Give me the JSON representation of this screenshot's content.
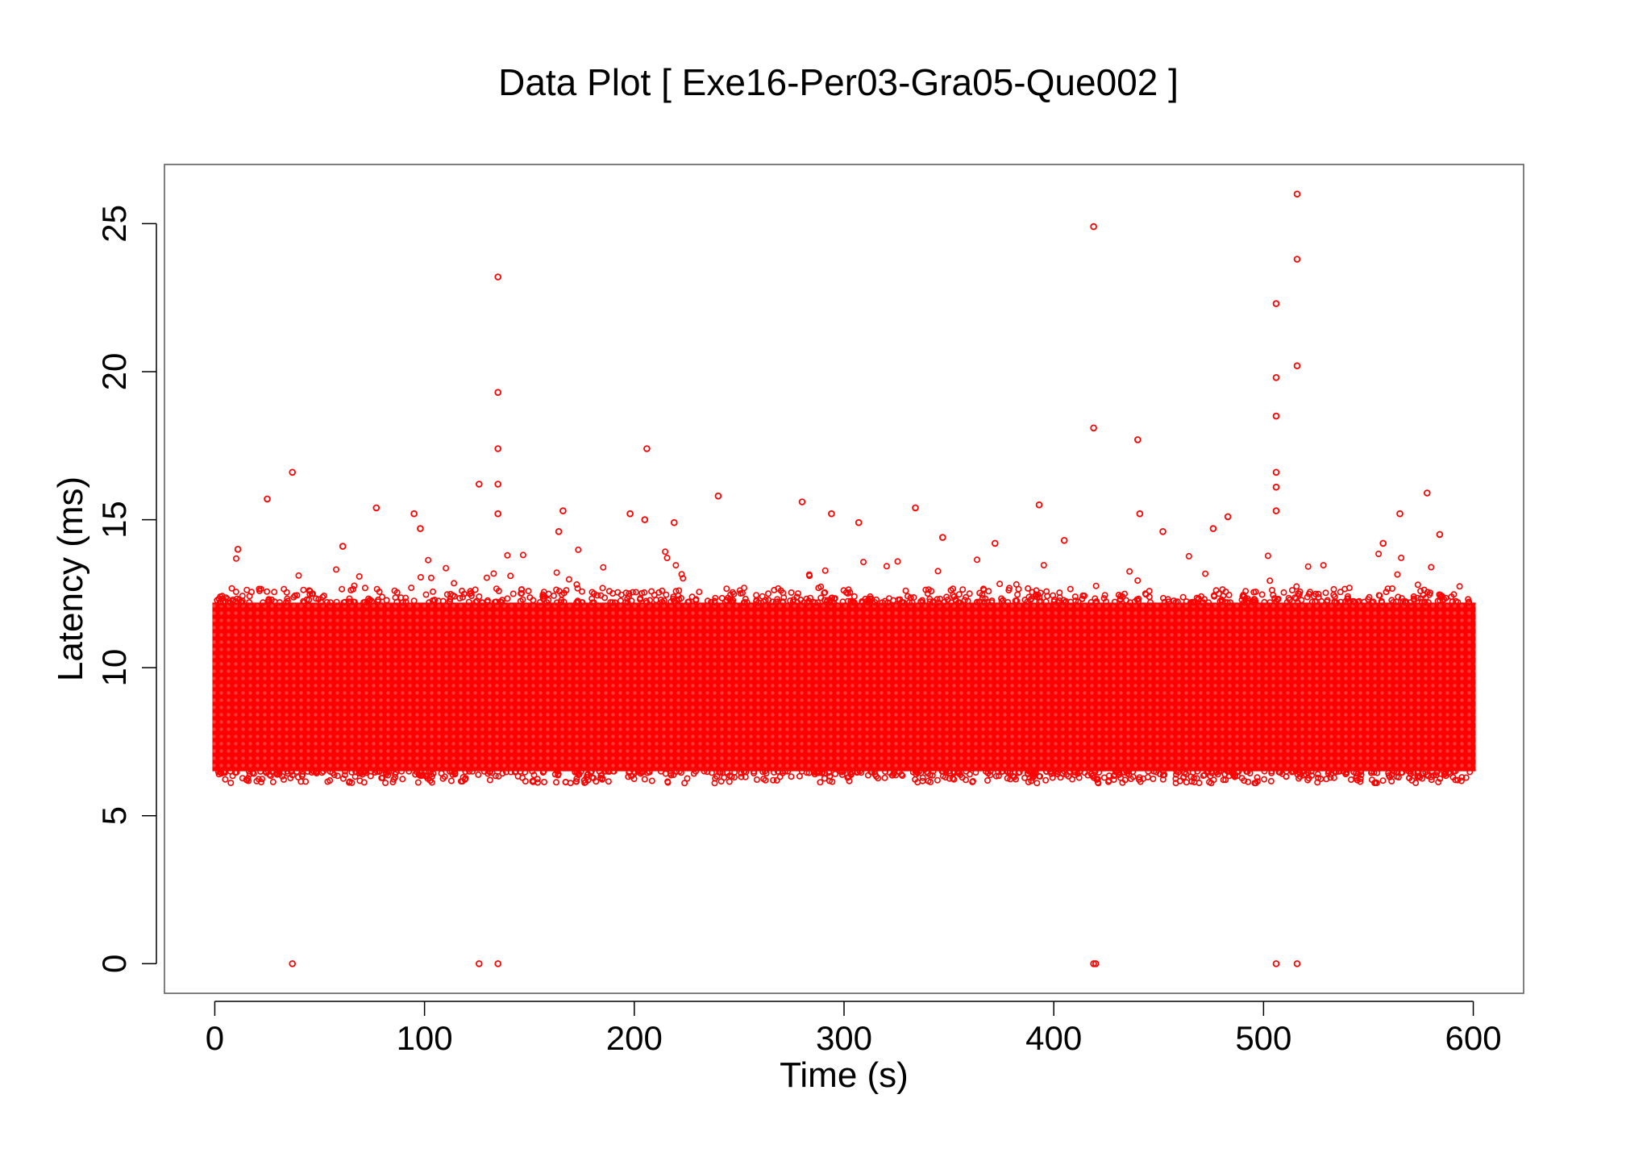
{
  "chart_data": {
    "type": "scatter",
    "title": "Data Plot [ Exe16-Per03-Gra05-Que002 ]",
    "xlabel": "Time (s)",
    "ylabel": "Latency (ms)",
    "xlim": [
      -24,
      624
    ],
    "ylim": [
      -1,
      27
    ],
    "x_ticks": [
      0,
      100,
      200,
      300,
      400,
      500,
      600
    ],
    "x_tick_labels": [
      "0",
      "100",
      "200",
      "300",
      "400",
      "500",
      "600"
    ],
    "y_ticks": [
      0,
      5,
      10,
      15,
      20,
      25
    ],
    "y_tick_labels": [
      "0",
      "5",
      "10",
      "15",
      "20",
      "25"
    ],
    "grid": false,
    "legend": "none",
    "marker": "open-circle",
    "color": "#ff0000",
    "dense_band": {
      "x_range": [
        0,
        600
      ],
      "y_core_range": [
        6.5,
        12.2
      ],
      "description_values": "continuous dense cloud of points between ~6.3 and ~12.3 ms across the whole 0-600 s run"
    },
    "series": [
      {
        "values": [
          {
            "x": 37,
            "y": 0
          },
          {
            "x": 126,
            "y": 0
          },
          {
            "x": 135,
            "y": 0
          },
          {
            "x": 419,
            "y": 0
          },
          {
            "x": 420,
            "y": 0
          },
          {
            "x": 506,
            "y": 0
          },
          {
            "x": 516,
            "y": 0
          },
          {
            "x": 135,
            "y": 23.2
          },
          {
            "x": 135,
            "y": 19.3
          },
          {
            "x": 135,
            "y": 17.4
          },
          {
            "x": 135,
            "y": 16.2
          },
          {
            "x": 135,
            "y": 15.2
          },
          {
            "x": 126,
            "y": 16.2
          },
          {
            "x": 37,
            "y": 16.6
          },
          {
            "x": 25,
            "y": 15.7
          },
          {
            "x": 77,
            "y": 15.4
          },
          {
            "x": 95,
            "y": 15.2
          },
          {
            "x": 98,
            "y": 14.7
          },
          {
            "x": 166,
            "y": 15.3
          },
          {
            "x": 164,
            "y": 14.6
          },
          {
            "x": 198,
            "y": 15.2
          },
          {
            "x": 206,
            "y": 17.4
          },
          {
            "x": 205,
            "y": 15.0
          },
          {
            "x": 219,
            "y": 14.9
          },
          {
            "x": 240,
            "y": 15.8
          },
          {
            "x": 280,
            "y": 15.6
          },
          {
            "x": 294,
            "y": 15.2
          },
          {
            "x": 307,
            "y": 14.9
          },
          {
            "x": 334,
            "y": 15.4
          },
          {
            "x": 347,
            "y": 14.4
          },
          {
            "x": 372,
            "y": 14.2
          },
          {
            "x": 393,
            "y": 15.5
          },
          {
            "x": 405,
            "y": 14.3
          },
          {
            "x": 419,
            "y": 24.9
          },
          {
            "x": 419,
            "y": 18.1
          },
          {
            "x": 440,
            "y": 17.7
          },
          {
            "x": 441,
            "y": 15.2
          },
          {
            "x": 452,
            "y": 14.6
          },
          {
            "x": 476,
            "y": 14.7
          },
          {
            "x": 483,
            "y": 15.1
          },
          {
            "x": 506,
            "y": 22.3
          },
          {
            "x": 506,
            "y": 19.8
          },
          {
            "x": 506,
            "y": 18.5
          },
          {
            "x": 506,
            "y": 16.6
          },
          {
            "x": 506,
            "y": 16.1
          },
          {
            "x": 506,
            "y": 15.3
          },
          {
            "x": 516,
            "y": 26.0
          },
          {
            "x": 516,
            "y": 23.8
          },
          {
            "x": 516,
            "y": 20.2
          },
          {
            "x": 565,
            "y": 15.2
          },
          {
            "x": 578,
            "y": 15.9
          },
          {
            "x": 584,
            "y": 14.5
          },
          {
            "x": 557,
            "y": 14.2
          },
          {
            "x": 11,
            "y": 14.0
          },
          {
            "x": 61,
            "y": 14.1
          }
        ]
      }
    ]
  }
}
